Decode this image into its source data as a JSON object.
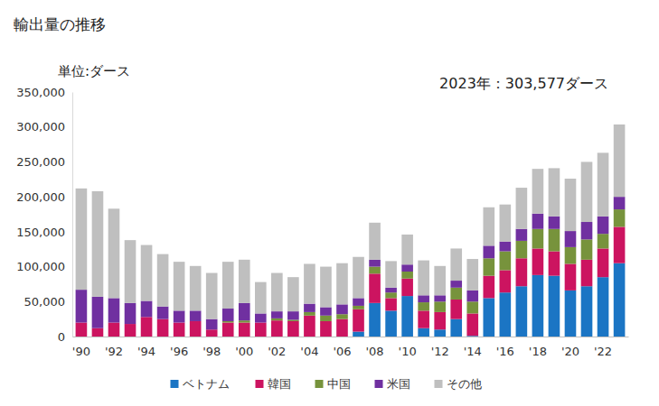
{
  "chart_data": {
    "type": "bar",
    "stacked": true,
    "title": "輸出量の推移",
    "y_label": "単位:ダース",
    "annotations": [
      "2023年：303,577ダース"
    ],
    "categories": [
      "'90",
      null,
      "'92",
      null,
      "'94",
      null,
      "'96",
      null,
      "'98",
      null,
      "'00",
      null,
      "'02",
      null,
      "'04",
      null,
      "'06",
      null,
      "'08",
      null,
      "'10",
      null,
      "'12",
      null,
      "'14",
      null,
      "'16",
      null,
      "'18",
      null,
      "'20",
      null,
      "'22",
      null
    ],
    "series": [
      {
        "name": "ベトナム",
        "color": "#1b75c4",
        "values": [
          0,
          0,
          0,
          0,
          0,
          0,
          0,
          0,
          0,
          0,
          0,
          0,
          0,
          0,
          0,
          0,
          0,
          7000,
          48000,
          37000,
          58000,
          12000,
          10000,
          25000,
          1000,
          55000,
          63000,
          72000,
          88000,
          87000,
          66000,
          72000,
          85000,
          105000
        ]
      },
      {
        "name": "韓国",
        "color": "#cc1460",
        "values": [
          20000,
          12000,
          20000,
          18000,
          28000,
          25000,
          20000,
          22000,
          10000,
          20000,
          20000,
          20000,
          23000,
          22000,
          30000,
          22000,
          25000,
          32000,
          42000,
          18000,
          25000,
          25000,
          25000,
          28000,
          32000,
          32000,
          32000,
          40000,
          38000,
          35000,
          38000,
          38000,
          41000,
          52000
        ]
      },
      {
        "name": "中国",
        "color": "#77933c",
        "values": [
          0,
          0,
          0,
          0,
          0,
          0,
          0,
          0,
          0,
          2000,
          3000,
          0,
          3000,
          2000,
          5000,
          8000,
          7000,
          5000,
          10000,
          8000,
          10000,
          12000,
          15000,
          17000,
          17000,
          25000,
          27000,
          25000,
          28000,
          32000,
          24000,
          29000,
          21000,
          25000
        ]
      },
      {
        "name": "米国",
        "color": "#7030a0",
        "values": [
          47000,
          45000,
          35000,
          30000,
          23000,
          18000,
          17000,
          15000,
          15000,
          18000,
          25000,
          13000,
          10000,
          12000,
          12000,
          12000,
          14000,
          11000,
          10000,
          7000,
          10000,
          10000,
          9000,
          10000,
          16000,
          18000,
          14000,
          17000,
          22000,
          18000,
          23000,
          25000,
          25000,
          18000
        ]
      },
      {
        "name": "その他",
        "color": "#bfbfbf",
        "values": [
          145000,
          151000,
          128000,
          90000,
          80000,
          75000,
          70000,
          64000,
          66000,
          67000,
          62000,
          45000,
          55000,
          49000,
          57000,
          58000,
          59000,
          59000,
          53000,
          38000,
          43000,
          50000,
          42000,
          46000,
          45000,
          55000,
          53000,
          59000,
          64000,
          69000,
          75000,
          86000,
          91000,
          103577
        ]
      }
    ],
    "ylim": [
      0,
      350000
    ],
    "yticks": [
      0,
      {
        "value": 50000,
        "label": "50,000"
      },
      {
        "value": 100000,
        "label": "100,000"
      },
      {
        "value": 150000,
        "label": "150,000"
      },
      {
        "value": 200000,
        "label": "200,000"
      },
      {
        "value": 250000,
        "label": "250,000"
      },
      {
        "value": 300000,
        "label": "300,000"
      },
      {
        "value": 350000,
        "label": "350,000"
      }
    ],
    "legend": "bottom",
    "grid": false
  }
}
